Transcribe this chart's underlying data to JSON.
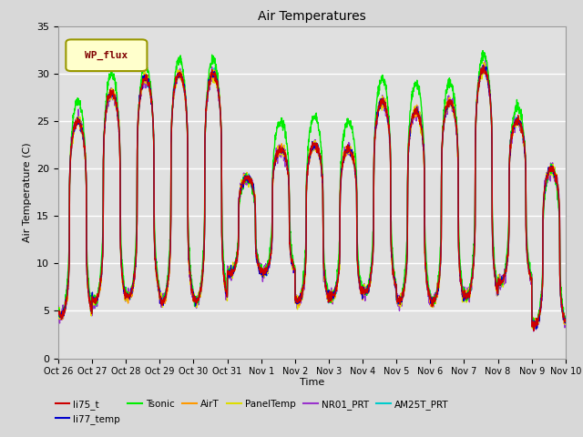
{
  "title": "Air Temperatures",
  "xlabel": "Time",
  "ylabel": "Air Temperature (C)",
  "ylim": [
    0,
    35
  ],
  "yticks": [
    0,
    5,
    10,
    15,
    20,
    25,
    30,
    35
  ],
  "date_labels": [
    "Oct 26",
    "Oct 27",
    "Oct 28",
    "Oct 29",
    "Oct 30",
    "Oct 31",
    "Nov 1",
    "Nov 2",
    "Nov 3",
    "Nov 4",
    "Nov 5",
    "Nov 6",
    "Nov 7",
    "Nov 8",
    "Nov 9",
    "Nov 10"
  ],
  "series": {
    "li75_t": {
      "color": "#cc0000"
    },
    "li77_temp": {
      "color": "#0000cc"
    },
    "Tsonic": {
      "color": "#00ee00"
    },
    "AirT": {
      "color": "#ff9900"
    },
    "PanelTemp": {
      "color": "#dddd00"
    },
    "NR01_PRT": {
      "color": "#9933cc"
    },
    "AM25T_PRT": {
      "color": "#00cccc"
    }
  },
  "legend_box_facecolor": "#ffffcc",
  "legend_box_edgecolor": "#999900",
  "legend_text_color": "#800000",
  "legend_box_text": "WP_flux",
  "fig_facecolor": "#d8d8d8",
  "plot_bg_color": "#e0e0e0",
  "grid_color": "#ffffff",
  "n_days": 15,
  "pts_per_day": 144,
  "day_mins": [
    4.5,
    6,
    6.5,
    6,
    6,
    9,
    9,
    6,
    6.5,
    7,
    6,
    6,
    6.5,
    8,
    3.5
  ],
  "day_maxs": [
    25,
    28,
    29.5,
    30,
    30,
    19,
    22,
    22.5,
    22,
    27,
    26,
    27,
    30.5,
    25,
    20
  ],
  "tsonic_extra": [
    2,
    2,
    1.5,
    1.5,
    1.5,
    0,
    3,
    3,
    3,
    2.5,
    3,
    2,
    1.5,
    1.5,
    0
  ]
}
